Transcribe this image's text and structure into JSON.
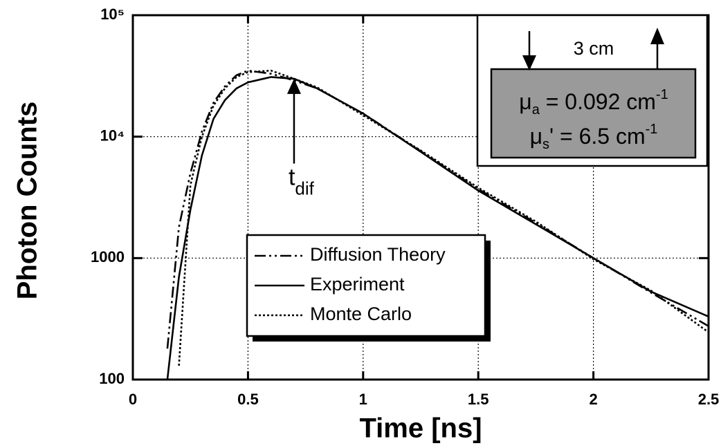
{
  "chart_data": {
    "type": "line",
    "x_label": "Time [ns]",
    "y_label": "Photon Counts",
    "log_y": true,
    "grid": true,
    "x": [
      0.15,
      0.2,
      0.25,
      0.3,
      0.35,
      0.4,
      0.45,
      0.5,
      0.6,
      0.7,
      0.8,
      1,
      1.25,
      1.5,
      1.75,
      2,
      2.25,
      2.5
    ],
    "series": [
      {
        "name": "Diffusion Theory",
        "color": "#000000",
        "dash": "dash-dot",
        "values": [
          180,
          1800,
          5000,
          11000,
          19000,
          26000,
          32000,
          35000,
          33000,
          29000,
          25000,
          15500,
          7600,
          3700,
          1950,
          1000,
          520,
          275
        ]
      },
      {
        "name": "Experiment",
        "color": "#000000",
        "dash": "solid",
        "values": [
          100,
          700,
          2500,
          7000,
          14000,
          20000,
          25000,
          28000,
          31000,
          30000,
          25000,
          15500,
          7500,
          3600,
          1900,
          1000,
          530,
          330
        ]
      },
      {
        "name": "Monte Carlo",
        "color": "#000000",
        "dash": "dotted",
        "values": [
          null,
          130,
          4000,
          10000,
          18000,
          25000,
          31000,
          34000,
          35000,
          30000,
          25500,
          15000,
          7700,
          3800,
          2000,
          980,
          540,
          245
        ]
      }
    ],
    "xlim": [
      0,
      2.5
    ],
    "xticks": [
      0,
      0.5,
      1,
      1.5,
      2,
      2.5
    ],
    "ylim": [
      100,
      100000
    ],
    "yticks": [
      100,
      1000,
      {
        "value": 10000,
        "label": "10⁴"
      },
      {
        "value": 100000,
        "label": "10⁵"
      }
    ],
    "annotation": {
      "text": "t",
      "sub": "dif",
      "x": 0.7,
      "y_from": 6000,
      "y_to": 30000
    },
    "inset": {
      "width_label": "3 cm",
      "mu_a": {
        "symbol": "μ",
        "sub": "a",
        "text": " = 0.092 cm",
        "sup": "-1"
      },
      "mu_s": {
        "symbol": "μ",
        "sub": "s",
        "text": "' = 6.5 cm",
        "sup": "-1"
      }
    }
  }
}
